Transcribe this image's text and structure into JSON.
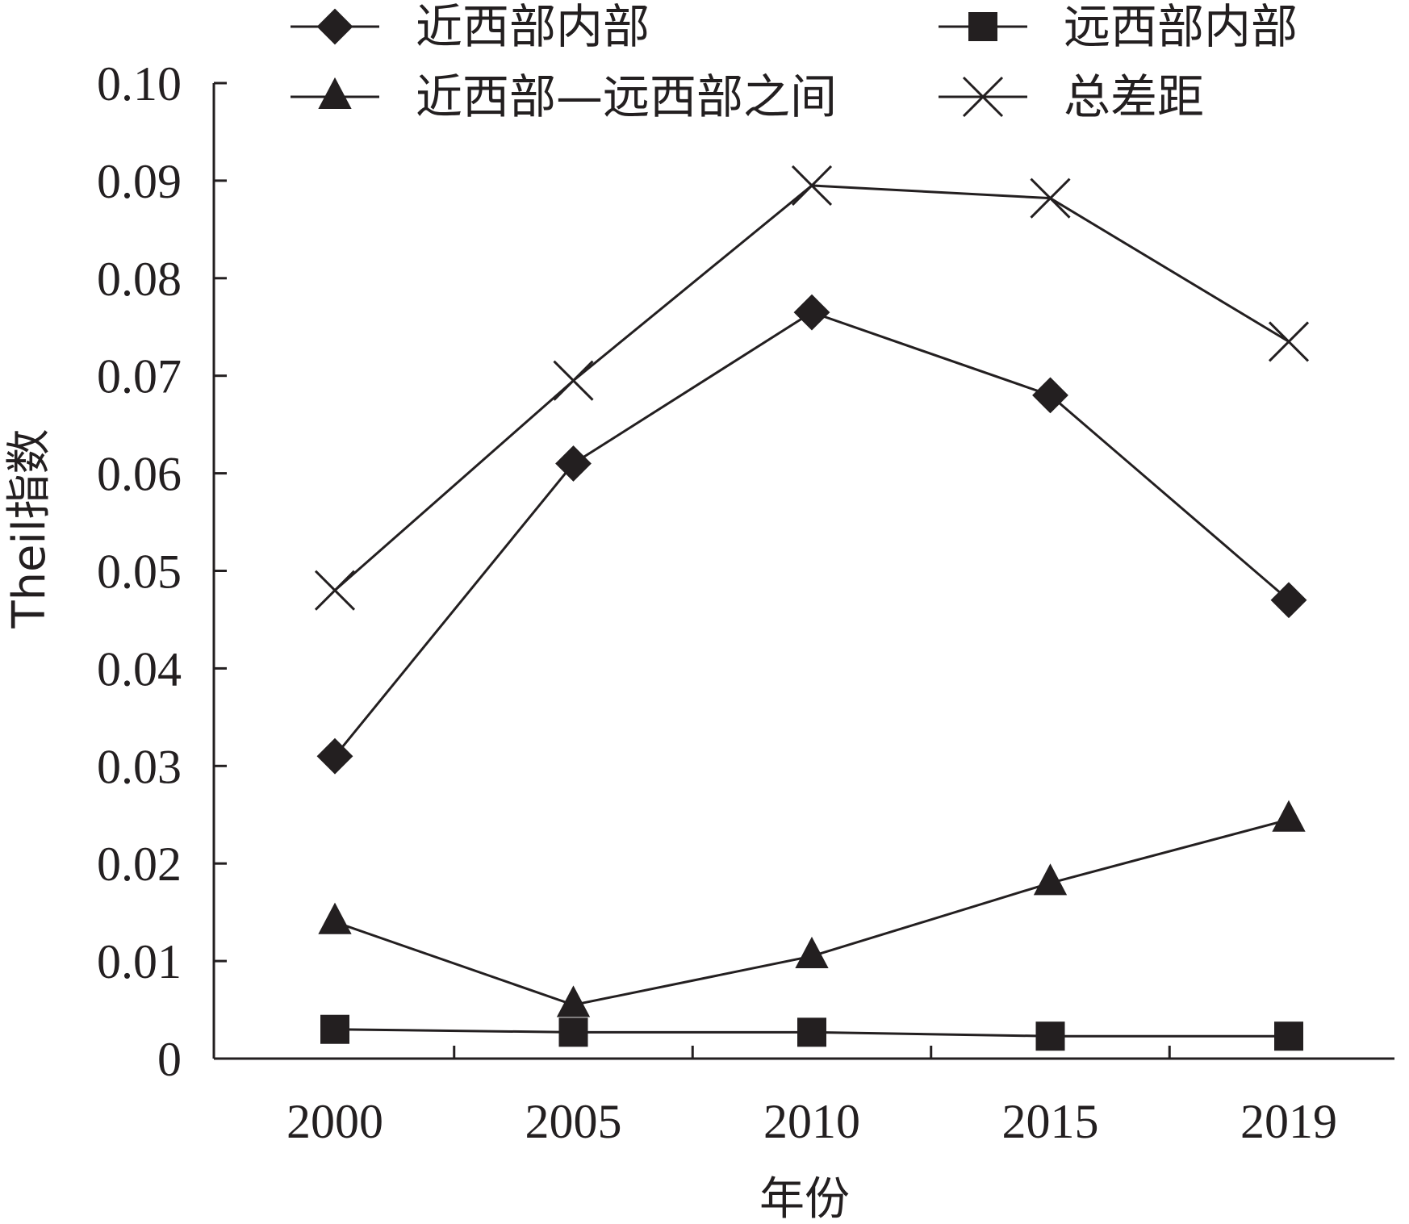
{
  "chart_data": {
    "type": "line",
    "categories": [
      "2000",
      "2005",
      "2010",
      "2015",
      "2019"
    ],
    "series": [
      {
        "name": "近西部内部",
        "marker": "diamond",
        "values": [
          0.031,
          0.061,
          0.0765,
          0.068,
          0.047
        ]
      },
      {
        "name": "远西部内部",
        "marker": "square",
        "values": [
          0.003,
          0.0027,
          0.0027,
          0.0023,
          0.0023
        ]
      },
      {
        "name": "近西部—远西部之间",
        "marker": "triangle",
        "values": [
          0.014,
          0.0055,
          0.0105,
          0.018,
          0.0245
        ]
      },
      {
        "name": "总差距",
        "marker": "cross",
        "values": [
          0.048,
          0.0695,
          0.0895,
          0.0882,
          0.0735
        ]
      }
    ],
    "xlabel": "年份",
    "ylabel": "Theil指数",
    "ylim": [
      0,
      0.1
    ],
    "yticks": [
      "0",
      "0.01",
      "0.02",
      "0.03",
      "0.04",
      "0.05",
      "0.06",
      "0.07",
      "0.08",
      "0.09",
      "0.10"
    ],
    "grid": false,
    "legend_position": "top",
    "color": "#231f20"
  }
}
